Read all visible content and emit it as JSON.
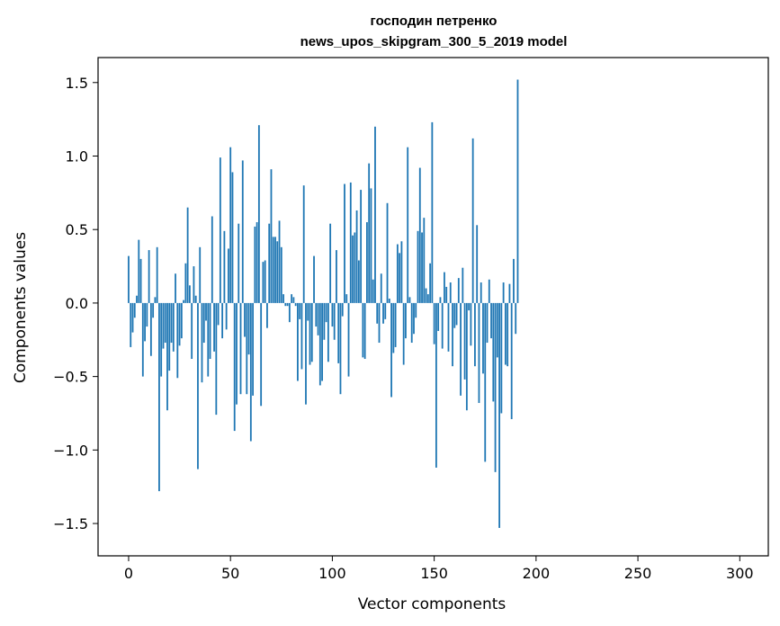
{
  "chart_data": {
    "type": "bar",
    "title": [
      "господин петренко",
      "news_upos_skipgram_300_5_2019 model"
    ],
    "xlabel": "Vector components",
    "ylabel": "Components values",
    "xlim": [
      -15,
      314
    ],
    "ylim": [
      -1.72,
      1.67
    ],
    "xticks": [
      0,
      50,
      100,
      150,
      200,
      250,
      300
    ],
    "yticks": [
      -1.5,
      -1.0,
      -0.5,
      0.0,
      0.5,
      1.0,
      1.5
    ],
    "ytick_labels": [
      "−1.5",
      "−1.0",
      "−0.5",
      "0.0",
      "0.5",
      "1.0",
      "1.5"
    ],
    "grid": false,
    "legend": "none",
    "bar_color": "#1f77b4",
    "values": [
      0.32,
      -0.3,
      -0.2,
      -0.1,
      0.05,
      0.43,
      0.3,
      -0.5,
      -0.26,
      -0.16,
      0.36,
      -0.36,
      -0.1,
      0.04,
      0.38,
      -1.28,
      -0.5,
      -0.31,
      -0.27,
      -0.73,
      -0.46,
      -0.27,
      -0.33,
      0.2,
      -0.51,
      -0.29,
      -0.24,
      0.02,
      0.27,
      0.65,
      0.12,
      -0.38,
      0.25,
      0.05,
      -1.13,
      0.38,
      -0.54,
      -0.27,
      -0.12,
      -0.5,
      -0.38,
      0.59,
      -0.33,
      -0.76,
      -0.15,
      0.99,
      -0.24,
      0.49,
      -0.18,
      0.37,
      1.06,
      0.89,
      -0.87,
      -0.69,
      0.54,
      -0.62,
      0.97,
      -0.23,
      -0.62,
      -0.35,
      -0.94,
      -0.63,
      0.52,
      0.55,
      1.21,
      -0.7,
      0.28,
      0.29,
      -0.17,
      0.54,
      0.91,
      0.45,
      0.45,
      0.42,
      0.56,
      0.38,
      0.06,
      -0.02,
      -0.02,
      -0.13,
      0.06,
      0.04,
      -0.02,
      -0.53,
      -0.11,
      -0.45,
      0.8,
      -0.69,
      -0.12,
      -0.42,
      -0.4,
      0.32,
      -0.16,
      -0.22,
      -0.56,
      -0.53,
      -0.25,
      -0.13,
      -0.4,
      0.54,
      -0.16,
      -0.25,
      0.36,
      -0.41,
      -0.62,
      -0.09,
      0.81,
      0.06,
      -0.5,
      0.82,
      0.46,
      0.48,
      0.63,
      0.29,
      0.77,
      -0.37,
      -0.38,
      0.55,
      0.95,
      0.78,
      0.16,
      1.2,
      -0.14,
      -0.27,
      0.2,
      -0.14,
      -0.11,
      0.68,
      0.03,
      -0.64,
      -0.34,
      -0.3,
      0.4,
      0.34,
      0.42,
      -0.42,
      -0.24,
      1.06,
      0.04,
      -0.27,
      -0.21,
      -0.1,
      0.49,
      0.92,
      0.48,
      0.58,
      0.1,
      0.06,
      0.27,
      1.23,
      -0.28,
      -1.12,
      -0.19,
      0.04,
      -0.31,
      0.21,
      0.11,
      -0.33,
      0.14,
      -0.43,
      -0.17,
      -0.15,
      0.17,
      -0.63,
      0.24,
      -0.52,
      -0.73,
      -0.05,
      -0.29,
      1.12,
      -0.43,
      0.53,
      -0.68,
      0.14,
      -0.48,
      -1.08,
      -0.27,
      0.16,
      -0.24,
      -0.67,
      -1.15,
      -0.37,
      -1.53,
      -0.75,
      0.14,
      -0.42,
      -0.43,
      0.13,
      -0.79,
      0.3,
      -0.21,
      1.52
    ]
  }
}
